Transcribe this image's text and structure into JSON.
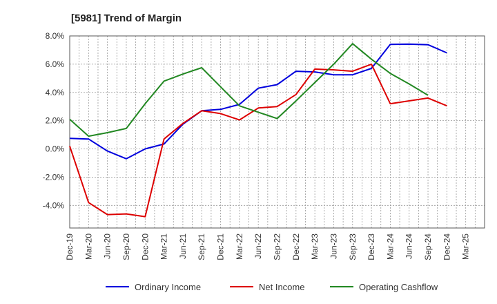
{
  "chart_data": {
    "type": "line",
    "title": "[5981]  Trend of Margin",
    "xlabel": "",
    "ylabel": "",
    "categories": [
      "Dec-19",
      "Mar-20",
      "Jun-20",
      "Sep-20",
      "Dec-20",
      "Mar-21",
      "Jun-21",
      "Sep-21",
      "Dec-21",
      "Mar-22",
      "Jun-22",
      "Sep-22",
      "Dec-22",
      "Mar-23",
      "Jun-23",
      "Sep-23",
      "Dec-23",
      "Mar-24",
      "Jun-24",
      "Sep-24",
      "Dec-24",
      "Mar-25"
    ],
    "ylim": [
      -5.6,
      8.0
    ],
    "yticks": [
      8.0,
      6.0,
      4.0,
      2.0,
      0.0,
      -2.0,
      -4.0
    ],
    "ytick_labels": [
      "8.0%",
      "6.0%",
      "4.0%",
      "2.0%",
      "0.0%",
      "-2.0%",
      "-4.0%"
    ],
    "grid": true,
    "legend_position": "bottom",
    "series": [
      {
        "name": "Ordinary Income",
        "color": "#0000dd",
        "values": [
          0.75,
          0.7,
          -0.15,
          -0.7,
          0.0,
          0.35,
          1.75,
          2.7,
          2.8,
          3.15,
          4.3,
          4.55,
          5.5,
          5.45,
          5.25,
          5.25,
          5.7,
          7.4,
          7.42,
          7.38,
          6.8,
          null
        ]
      },
      {
        "name": "Net Income",
        "color": "#dd0000",
        "values": [
          0.2,
          -3.8,
          -4.65,
          -4.6,
          -4.8,
          0.7,
          1.8,
          2.7,
          2.5,
          2.05,
          2.9,
          3.0,
          3.85,
          5.65,
          5.6,
          5.5,
          6.0,
          3.2,
          3.4,
          3.6,
          3.05,
          null
        ]
      },
      {
        "name": "Operating Cashflow",
        "color": "#228822",
        "values": [
          2.1,
          0.9,
          1.15,
          1.45,
          3.2,
          4.8,
          5.3,
          5.75,
          4.4,
          3.05,
          2.6,
          2.15,
          3.4,
          4.7,
          6.0,
          7.45,
          6.35,
          5.35,
          4.6,
          3.8,
          null,
          null
        ]
      }
    ]
  }
}
